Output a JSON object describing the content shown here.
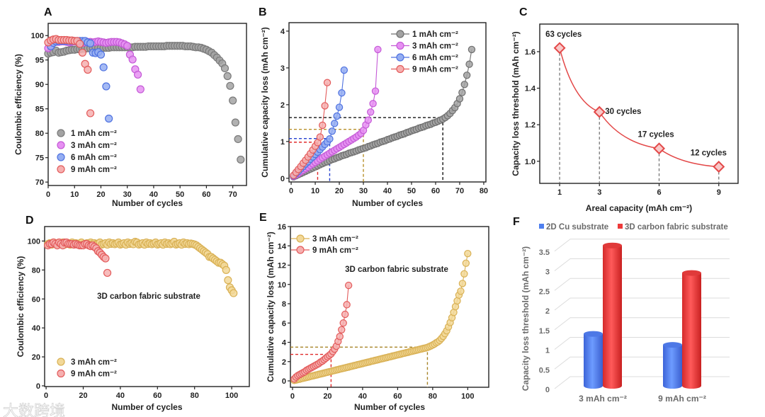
{
  "watermark": "大数跨境",
  "chart_data": [
    {
      "panel": "A",
      "type": "scatter",
      "xlabel": "Number of cycles",
      "ylabel": "Coulombic efficiency (%)",
      "xlim": [
        0,
        75
      ],
      "ylim": [
        70,
        102
      ],
      "xticks": [
        0,
        10,
        20,
        30,
        40,
        50,
        60,
        70
      ],
      "yticks": [
        70,
        75,
        80,
        85,
        90,
        95,
        100
      ],
      "legend_position": "bottom-left",
      "series": [
        {
          "name": "1 mAh cm⁻²",
          "fill": "#a3a3a3",
          "stroke": "#7a7a7a",
          "x_start": 0,
          "y": [
            96.3,
            96.5,
            96.6,
            96.9,
            96.5,
            96.6,
            96.7,
            96.9,
            97.0,
            97.1,
            97.1,
            97.2,
            97.2,
            97.3,
            97.3,
            97.4,
            97.4,
            97.4,
            97.5,
            97.5,
            97.5,
            97.5,
            97.5,
            97.5,
            97.6,
            97.6,
            97.6,
            97.6,
            97.6,
            97.6,
            97.6,
            97.6,
            97.6,
            97.7,
            97.7,
            97.7,
            97.7,
            97.7,
            97.8,
            97.8,
            97.8,
            97.8,
            97.8,
            97.8,
            97.8,
            97.9,
            97.9,
            97.9,
            97.9,
            97.9,
            97.9,
            97.9,
            97.8,
            97.8,
            97.8,
            97.7,
            97.6,
            97.6,
            97.5,
            97.3,
            97.1,
            96.8,
            96.5,
            96.0,
            95.5,
            94.9,
            94.3,
            93.3,
            91.7,
            89.7,
            86.7,
            82.2,
            78.8,
            74.6
          ]
        },
        {
          "name": "3 mAh cm⁻²",
          "fill": "#e690f2",
          "stroke": "#c45ad6",
          "x_start": 0,
          "y": [
            97.4,
            98.0,
            98.5,
            98.7,
            98.7,
            98.8,
            98.8,
            98.7,
            98.6,
            98.7,
            98.8,
            98.8,
            98.6,
            98.5,
            98.6,
            98.7,
            98.7,
            98.6,
            98.7,
            98.8,
            98.7,
            98.6,
            98.5,
            98.6,
            98.7,
            98.7,
            98.7,
            98.6,
            98.4,
            98.2,
            97.9,
            96.1,
            95.1,
            93.1,
            92.0,
            89.0
          ]
        },
        {
          "name": "6 mAh cm⁻²",
          "fill": "#95aef2",
          "stroke": "#4f72e0",
          "x_start": 1,
          "y": [
            97.8,
            98.5,
            98.8,
            98.9,
            98.9,
            98.9,
            98.9,
            98.9,
            98.9,
            98.9,
            98.9,
            98.9,
            98.9,
            98.9,
            98.6,
            98.4,
            96.5,
            96.4,
            96.6,
            96.1,
            93.5,
            89.6,
            83.0
          ]
        },
        {
          "name": "9 mAh cm⁻²",
          "fill": "#f6b0b0",
          "stroke": "#e35b5b",
          "x_start": 0,
          "y": [
            98.6,
            99.0,
            99.2,
            99.3,
            99.1,
            99.1,
            99.1,
            99.1,
            99.0,
            99.0,
            98.9,
            98.9,
            98.3,
            96.5,
            94.2,
            93.0,
            84.1
          ]
        }
      ]
    },
    {
      "panel": "B",
      "type": "line",
      "xlabel": "Number of cycles",
      "ylabel": "Cumulative capacity loss (mAh cm⁻²)",
      "xlim": [
        0,
        80
      ],
      "ylim": [
        0,
        4.2
      ],
      "xticks": [
        0,
        10,
        20,
        30,
        40,
        50,
        60,
        70,
        80
      ],
      "yticks": [
        0,
        1,
        2,
        3,
        4
      ],
      "legend_position": "top-right",
      "series": [
        {
          "name": "1 mAh cm⁻²",
          "fill": "#a3a3a3",
          "stroke": "#6f6f6f",
          "x_start": 1,
          "y": [
            0.04,
            0.07,
            0.1,
            0.13,
            0.16,
            0.19,
            0.22,
            0.25,
            0.28,
            0.31,
            0.34,
            0.37,
            0.4,
            0.43,
            0.45,
            0.48,
            0.51,
            0.53,
            0.56,
            0.58,
            0.61,
            0.63,
            0.65,
            0.68,
            0.7,
            0.72,
            0.74,
            0.77,
            0.79,
            0.81,
            0.83,
            0.86,
            0.88,
            0.91,
            0.93,
            0.95,
            0.98,
            1.0,
            1.02,
            1.05,
            1.07,
            1.1,
            1.12,
            1.14,
            1.17,
            1.19,
            1.21,
            1.24,
            1.26,
            1.29,
            1.31,
            1.33,
            1.36,
            1.38,
            1.4,
            1.43,
            1.45,
            1.47,
            1.5,
            1.52,
            1.55,
            1.58,
            1.61,
            1.65,
            1.7,
            1.76,
            1.84,
            1.92,
            2.03,
            2.16,
            2.33,
            2.55,
            2.8,
            3.1,
            3.5
          ]
        },
        {
          "name": "3 mAh cm⁻²",
          "fill": "#e690f2",
          "stroke": "#c45ad6",
          "x_start": 1,
          "y": [
            0.05,
            0.09,
            0.13,
            0.18,
            0.22,
            0.26,
            0.3,
            0.35,
            0.39,
            0.43,
            0.47,
            0.52,
            0.56,
            0.6,
            0.64,
            0.68,
            0.72,
            0.76,
            0.8,
            0.84,
            0.88,
            0.92,
            0.96,
            1.0,
            1.04,
            1.08,
            1.12,
            1.17,
            1.22,
            1.3,
            1.45,
            1.58,
            1.8,
            2.03,
            2.37,
            3.5
          ]
        },
        {
          "name": "6 mAh cm⁻²",
          "fill": "#95aef2",
          "stroke": "#4f72e0",
          "x_start": 1,
          "y": [
            0.07,
            0.13,
            0.19,
            0.26,
            0.32,
            0.39,
            0.45,
            0.52,
            0.58,
            0.65,
            0.71,
            0.78,
            0.85,
            0.92,
            0.99,
            1.07,
            1.28,
            1.49,
            1.69,
            1.93,
            2.32,
            2.94
          ]
        },
        {
          "name": "9 mAh cm⁻²",
          "fill": "#f6b0b0",
          "stroke": "#e35b5b",
          "x_start": 1,
          "y": [
            0.08,
            0.16,
            0.24,
            0.32,
            0.41,
            0.49,
            0.58,
            0.67,
            0.77,
            0.87,
            0.97,
            1.12,
            1.44,
            1.97,
            2.6
          ]
        }
      ],
      "guides": [
        {
          "x": 63,
          "y": 1.65,
          "color": "#111111"
        },
        {
          "x": 30,
          "y": 1.33,
          "color": "#b8902a"
        },
        {
          "x": 16,
          "y": 1.08,
          "color": "#2540d0"
        },
        {
          "x": 11,
          "y": 0.98,
          "color": "#e02a2a"
        }
      ]
    },
    {
      "panel": "C",
      "type": "line",
      "xlabel": "Areal capacity (mAh cm⁻²)",
      "ylabel": "Capacity loss threshold (mAh cm⁻²)",
      "xlim": [
        0,
        10
      ],
      "ylim": [
        0.88,
        1.75
      ],
      "xticks": [
        1,
        3,
        6,
        9
      ],
      "yticks": [
        1.0,
        1.2,
        1.4,
        1.6
      ],
      "series": [
        {
          "name": "threshold",
          "fill": "#f8c8c8",
          "stroke": "#e34848",
          "x": [
            1,
            3,
            6,
            9
          ],
          "y": [
            1.62,
            1.27,
            1.07,
            0.97
          ],
          "labels": [
            "63 cycles",
            "30 cycles",
            "17 cycles",
            "12 cycles"
          ]
        }
      ]
    },
    {
      "panel": "D",
      "type": "scatter",
      "xlabel": "Number of cycles",
      "ylabel": "Coulombic efficiency (%)",
      "xlim": [
        0,
        108
      ],
      "ylim": [
        0,
        110
      ],
      "xticks": [
        0,
        20,
        40,
        60,
        80,
        100
      ],
      "yticks": [
        0,
        20,
        40,
        60,
        80,
        100
      ],
      "legend_position": "bottom-left",
      "annotation": "3D carbon fabric substrate",
      "series": [
        {
          "name": "3 mAh cm⁻²",
          "fill": "#f2d898",
          "stroke": "#d9b155",
          "x_start": 1,
          "y": [
            98,
            98.5,
            97.5,
            99,
            98,
            98.5,
            97.8,
            98.3,
            99,
            97.6,
            98,
            98.5,
            97.5,
            99,
            98,
            98.5,
            97.8,
            98.3,
            99,
            97.6,
            98,
            98.5,
            97.5,
            99,
            98,
            98.5,
            97.8,
            98.3,
            99,
            97.6,
            98,
            98.5,
            97.5,
            99,
            98,
            98.5,
            97.8,
            98.3,
            99,
            97.6,
            98,
            98.5,
            97.5,
            99,
            98,
            98.5,
            97.8,
            99.5,
            99,
            97.6,
            98,
            98.5,
            97.5,
            99,
            98,
            98.5,
            97.8,
            98.3,
            99,
            97.6,
            98,
            98.5,
            97.5,
            99,
            98,
            98.5,
            97.8,
            98.3,
            99.5,
            97.6,
            98,
            98.5,
            97.5,
            99,
            98,
            98.5,
            97.8,
            98.3,
            98,
            97.6,
            97,
            96,
            95,
            94,
            93,
            92,
            91,
            89,
            89,
            88,
            87,
            86,
            85,
            85,
            84,
            83,
            80,
            73,
            68,
            66,
            64
          ]
        },
        {
          "name": "9 mAh cm⁻²",
          "fill": "#f6b0b0",
          "stroke": "#e35b5b",
          "x_start": 1,
          "y": [
            97,
            98,
            98,
            99,
            98,
            97,
            99,
            98,
            97,
            99,
            99,
            98,
            98,
            98,
            97.5,
            98,
            97.5,
            97,
            97,
            97,
            98,
            98,
            97,
            96.5,
            97,
            96,
            95,
            93,
            92,
            90.5,
            89,
            88,
            78
          ]
        }
      ]
    },
    {
      "panel": "E",
      "type": "line",
      "xlabel": "Number of cycles",
      "ylabel": "Cumulative capacity loss (mAh cm⁻²)",
      "xlim": [
        0,
        110
      ],
      "ylim": [
        0,
        16
      ],
      "xticks": [
        0,
        20,
        40,
        60,
        80,
        100
      ],
      "yticks": [
        0,
        2,
        4,
        6,
        8,
        10,
        12,
        14,
        16
      ],
      "legend_position": "top-left",
      "annotation": "3D carbon fabric substrate",
      "series": [
        {
          "name": "3 mAh cm⁻²",
          "fill": "#f2d898",
          "stroke": "#d9b155",
          "x_start": 1,
          "y": [
            0.05,
            0.09,
            0.14,
            0.18,
            0.23,
            0.27,
            0.32,
            0.36,
            0.41,
            0.45,
            0.5,
            0.54,
            0.59,
            0.63,
            0.68,
            0.72,
            0.77,
            0.81,
            0.86,
            0.9,
            0.95,
            0.99,
            1.04,
            1.08,
            1.13,
            1.17,
            1.22,
            1.26,
            1.31,
            1.35,
            1.4,
            1.44,
            1.49,
            1.53,
            1.58,
            1.62,
            1.67,
            1.71,
            1.76,
            1.8,
            1.85,
            1.89,
            1.94,
            1.98,
            2.03,
            2.07,
            2.12,
            2.16,
            2.21,
            2.25,
            2.3,
            2.34,
            2.39,
            2.43,
            2.48,
            2.52,
            2.57,
            2.61,
            2.66,
            2.7,
            2.75,
            2.79,
            2.84,
            2.88,
            2.93,
            2.97,
            3.02,
            3.06,
            3.11,
            3.15,
            3.2,
            3.24,
            3.29,
            3.33,
            3.38,
            3.42,
            3.47,
            3.55,
            3.63,
            3.72,
            3.82,
            3.95,
            4.05,
            4.2,
            4.4,
            4.62,
            4.9,
            5.2,
            5.6,
            6.05,
            6.55,
            7.1,
            7.7,
            8.3,
            8.9,
            9.3,
            10.1,
            11.1,
            12.2,
            13.2
          ]
        },
        {
          "name": "9 mAh cm⁻²",
          "fill": "#f6b0b0",
          "stroke": "#e35b5b",
          "x_start": 1,
          "y": [
            0.2,
            0.4,
            0.55,
            0.65,
            0.75,
            0.85,
            0.95,
            1.1,
            1.2,
            1.3,
            1.4,
            1.5,
            1.6,
            1.7,
            1.8,
            1.95,
            2.05,
            2.2,
            2.35,
            2.5,
            2.65,
            2.8,
            3.05,
            3.3,
            3.6,
            4.1,
            4.6,
            5.3,
            6.0,
            6.9,
            7.9,
            9.9
          ]
        }
      ],
      "guides": [
        {
          "x": 77,
          "y": 3.5,
          "color": "#a8852a"
        },
        {
          "x": 22,
          "y": 2.75,
          "color": "#e02a2a"
        }
      ]
    },
    {
      "panel": "F",
      "type": "bar",
      "ylabel": "Capacity loss threshold (mAh cm⁻²)",
      "ylim": [
        0,
        3.5
      ],
      "yticks": [
        "0",
        "0.5",
        "1",
        "1.5",
        "2",
        "2.5",
        "3",
        "3.5"
      ],
      "categories": [
        "3 mAh cm⁻²",
        "9 mAh cm⁻²"
      ],
      "legend_position": "top",
      "series": [
        {
          "name": "2D Cu substrate",
          "color": "#4f7fef",
          "values": [
            1.25,
            0.97
          ]
        },
        {
          "name": "3D carbon fabric substrate",
          "color": "#ee3a3a",
          "values": [
            3.5,
            2.8
          ]
        }
      ]
    }
  ]
}
